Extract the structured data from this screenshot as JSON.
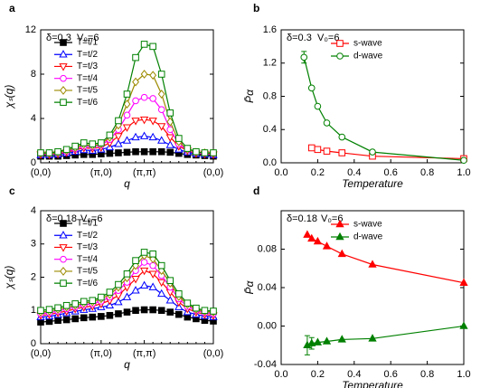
{
  "chart_data": [
    {
      "type": "line",
      "panel": "a",
      "annotations": [
        "δ=0.3",
        "V₀=6"
      ],
      "y_label": "χₛ(q)",
      "x_label": "q",
      "legend": "upper left",
      "categories": [
        "(0,0)",
        null,
        null,
        null,
        null,
        null,
        null,
        "(π,0)",
        null,
        null,
        null,
        null,
        "(π,π)",
        null,
        null,
        null,
        null,
        null,
        null,
        null,
        "(0,0)"
      ],
      "ylim": [
        0,
        12
      ],
      "yticks": [
        0,
        4,
        8,
        12
      ],
      "series": [
        {
          "name": "T=t/1",
          "color": "#000000",
          "marker": "square",
          "filled": true,
          "values": [
            0.6,
            0.6,
            0.6,
            0.65,
            0.7,
            0.75,
            0.75,
            0.8,
            0.85,
            0.9,
            0.95,
            1.0,
            1.0,
            1.0,
            1.0,
            0.95,
            0.85,
            0.75,
            0.7,
            0.65,
            0.6
          ]
        },
        {
          "name": "T=t/2",
          "color": "#0000ff",
          "marker": "triangle-up",
          "filled": false,
          "values": [
            0.7,
            0.7,
            0.75,
            0.85,
            1.0,
            1.15,
            1.1,
            1.2,
            1.4,
            1.7,
            2.0,
            2.3,
            2.4,
            2.3,
            2.0,
            1.6,
            1.2,
            0.95,
            0.8,
            0.75,
            0.7
          ]
        },
        {
          "name": "T=t/3",
          "color": "#ff0000",
          "marker": "triangle-down",
          "filled": false,
          "values": [
            0.75,
            0.75,
            0.8,
            0.95,
            1.15,
            1.35,
            1.3,
            1.4,
            1.8,
            2.4,
            3.2,
            3.8,
            3.9,
            3.8,
            3.3,
            2.3,
            1.5,
            1.1,
            0.85,
            0.8,
            0.75
          ]
        },
        {
          "name": "T=t/4",
          "color": "#ff00ff",
          "marker": "circle",
          "filled": false,
          "values": [
            0.8,
            0.8,
            0.85,
            1.0,
            1.25,
            1.5,
            1.45,
            1.6,
            2.1,
            3.0,
            4.3,
            5.6,
            5.9,
            5.8,
            4.8,
            3.0,
            1.7,
            1.15,
            0.9,
            0.85,
            0.8
          ]
        },
        {
          "name": "T=t/5",
          "color": "#9c8a00",
          "marker": "diamond",
          "filled": false,
          "values": [
            0.85,
            0.85,
            0.9,
            1.1,
            1.35,
            1.65,
            1.55,
            1.7,
            2.3,
            3.4,
            5.3,
            7.3,
            8.0,
            7.9,
            6.2,
            3.7,
            1.9,
            1.2,
            0.95,
            0.9,
            0.85
          ]
        },
        {
          "name": "T=t/6",
          "color": "#008000",
          "marker": "square",
          "filled": false,
          "values": [
            0.9,
            0.9,
            1.0,
            1.2,
            1.5,
            1.8,
            1.7,
            1.8,
            2.5,
            3.8,
            6.2,
            9.5,
            10.7,
            10.5,
            8.0,
            4.5,
            2.2,
            1.3,
            1.0,
            0.9,
            0.9
          ]
        }
      ]
    },
    {
      "type": "scatter-line",
      "panel": "b",
      "annotations": [
        "δ=0.3",
        "V₀=6"
      ],
      "y_label": "P̄α",
      "x_label": "Temperature",
      "legend": "upper right",
      "xlim": [
        0,
        1
      ],
      "xticks": [
        {
          "value": 0,
          "label": "0.0"
        },
        {
          "value": 0.2,
          "label": "0.2"
        },
        {
          "value": 0.4,
          "label": "0.4"
        },
        {
          "value": 0.6,
          "label": "0.6"
        },
        {
          "value": 0.8,
          "label": "0.8"
        },
        {
          "value": 1,
          "label": "1.0"
        }
      ],
      "ylim": [
        0,
        1.6
      ],
      "yticks": [
        {
          "value": 0,
          "label": "0.0"
        },
        {
          "value": 0.4,
          "label": "0.4"
        },
        {
          "value": 0.8,
          "label": "0.8"
        },
        {
          "value": 1.2,
          "label": "1.2"
        },
        {
          "value": 1.6,
          "label": "1.6"
        }
      ],
      "series": [
        {
          "name": "s-wave",
          "color": "#ff0000",
          "marker": "square",
          "filled": false,
          "x": [
            0.167,
            0.2,
            0.25,
            0.333,
            0.5,
            1.0
          ],
          "values": [
            0.18,
            0.16,
            0.14,
            0.12,
            0.08,
            0.05
          ],
          "errors": [
            null,
            null,
            null,
            null,
            null,
            null
          ]
        },
        {
          "name": "d-wave",
          "color": "#008000",
          "marker": "circle",
          "filled": false,
          "x": [
            0.125,
            0.167,
            0.2,
            0.25,
            0.333,
            0.5,
            1.0
          ],
          "values": [
            1.27,
            0.9,
            0.68,
            0.48,
            0.31,
            0.13,
            0.03
          ],
          "errors": [
            0.07,
            null,
            null,
            null,
            null,
            null,
            null
          ]
        }
      ]
    },
    {
      "type": "line",
      "panel": "c",
      "annotations": [
        "δ=0.18",
        "V₀=6"
      ],
      "y_label": "χₛ(q)",
      "x_label": "q",
      "legend": "upper left",
      "categories": [
        "(0,0)",
        null,
        null,
        null,
        null,
        null,
        null,
        "(π,0)",
        null,
        null,
        null,
        null,
        "(π,π)",
        null,
        null,
        null,
        null,
        null,
        null,
        null,
        "(0,0)"
      ],
      "ylim": [
        0,
        4
      ],
      "yticks": [
        0,
        1,
        2,
        3,
        4
      ],
      "series": [
        {
          "name": "T=t/1",
          "color": "#000000",
          "marker": "square",
          "filled": true,
          "values": [
            0.65,
            0.67,
            0.7,
            0.72,
            0.75,
            0.78,
            0.8,
            0.82,
            0.85,
            0.9,
            0.95,
            1.0,
            1.02,
            1.02,
            1.0,
            0.95,
            0.88,
            0.8,
            0.75,
            0.7,
            0.68
          ]
        },
        {
          "name": "T=t/2",
          "color": "#0000ff",
          "marker": "triangle-up",
          "filled": false,
          "values": [
            0.8,
            0.82,
            0.87,
            0.92,
            0.97,
            1.02,
            1.05,
            1.1,
            1.15,
            1.25,
            1.4,
            1.6,
            1.75,
            1.7,
            1.5,
            1.3,
            1.1,
            0.95,
            0.88,
            0.83,
            0.8
          ]
        },
        {
          "name": "T=t/3",
          "color": "#ff0000",
          "marker": "triangle-down",
          "filled": false,
          "values": [
            0.85,
            0.88,
            0.93,
            0.98,
            1.05,
            1.1,
            1.13,
            1.2,
            1.3,
            1.45,
            1.7,
            1.95,
            2.2,
            2.1,
            1.85,
            1.55,
            1.25,
            1.05,
            0.95,
            0.88,
            0.85
          ]
        },
        {
          "name": "T=t/4",
          "color": "#ff00ff",
          "marker": "circle",
          "filled": false,
          "values": [
            0.9,
            0.93,
            0.98,
            1.05,
            1.1,
            1.17,
            1.2,
            1.28,
            1.4,
            1.6,
            1.85,
            2.2,
            2.45,
            2.35,
            2.05,
            1.7,
            1.35,
            1.12,
            1.0,
            0.93,
            0.9
          ]
        },
        {
          "name": "T=t/5",
          "color": "#9c8a00",
          "marker": "diamond",
          "filled": false,
          "values": [
            0.95,
            0.98,
            1.03,
            1.1,
            1.15,
            1.22,
            1.26,
            1.35,
            1.48,
            1.7,
            1.98,
            2.35,
            2.65,
            2.55,
            2.2,
            1.82,
            1.42,
            1.18,
            1.03,
            0.97,
            0.95
          ]
        },
        {
          "name": "T=t/6",
          "color": "#008000",
          "marker": "square",
          "filled": false,
          "values": [
            1.0,
            1.03,
            1.08,
            1.15,
            1.2,
            1.27,
            1.3,
            1.4,
            1.55,
            1.78,
            2.1,
            2.5,
            2.75,
            2.7,
            2.35,
            1.9,
            1.5,
            1.22,
            1.07,
            1.0,
            0.98
          ]
        }
      ]
    },
    {
      "type": "scatter-line",
      "panel": "d",
      "annotations": [
        "δ=0.18",
        "V₀=6"
      ],
      "y_label": "P̄α",
      "x_label": "Temperature",
      "legend": "upper right",
      "xlim": [
        0,
        1
      ],
      "xticks": [
        {
          "value": 0,
          "label": "0.0"
        },
        {
          "value": 0.2,
          "label": "0.2"
        },
        {
          "value": 0.4,
          "label": "0.4"
        },
        {
          "value": 0.6,
          "label": "0.6"
        },
        {
          "value": 0.8,
          "label": "0.8"
        },
        {
          "value": 1,
          "label": "1.0"
        }
      ],
      "ylim": [
        -0.04,
        0.12
      ],
      "yticks": [
        {
          "value": -0.04,
          "label": "-0.04"
        },
        {
          "value": 0,
          "label": "0.00"
        },
        {
          "value": 0.04,
          "label": "0.04"
        },
        {
          "value": 0.08,
          "label": "0.08"
        }
      ],
      "series": [
        {
          "name": "s-wave",
          "color": "#ff0000",
          "marker": "triangle-up",
          "filled": true,
          "x": [
            0.143,
            0.167,
            0.2,
            0.25,
            0.333,
            0.5,
            1.0
          ],
          "values": [
            0.095,
            0.091,
            0.088,
            0.083,
            0.075,
            0.064,
            0.045
          ],
          "errors": [
            null,
            null,
            null,
            null,
            null,
            null,
            null
          ]
        },
        {
          "name": "d-wave",
          "color": "#008000",
          "marker": "triangle-up",
          "filled": true,
          "x": [
            0.143,
            0.167,
            0.2,
            0.25,
            0.333,
            0.5,
            1.0
          ],
          "values": [
            -0.02,
            -0.018,
            -0.017,
            -0.016,
            -0.014,
            -0.013,
            0.0
          ],
          "errors": [
            0.01,
            0.006,
            null,
            null,
            null,
            null,
            null
          ]
        }
      ]
    }
  ]
}
